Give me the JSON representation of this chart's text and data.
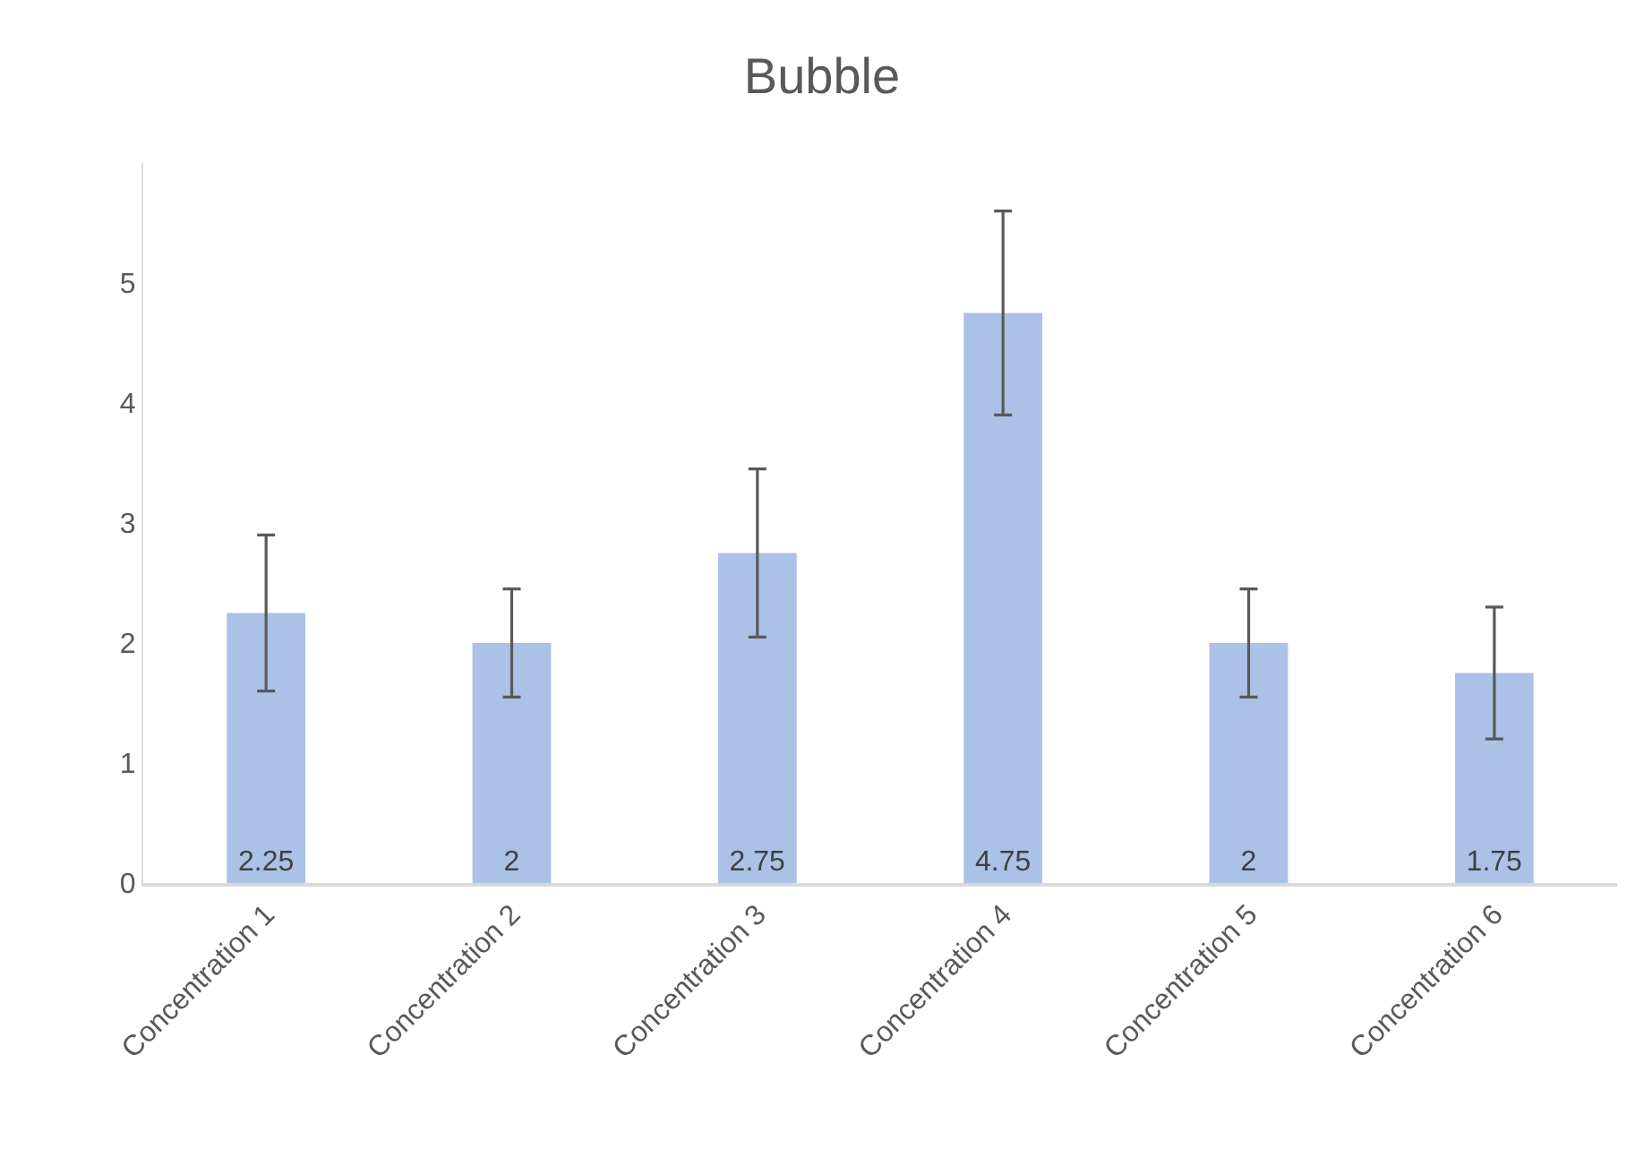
{
  "chart_data": {
    "type": "bar",
    "title": "Bubble",
    "categories": [
      "Concentration 1",
      "Concentration 2",
      "Concentration 3",
      "Concentration 4",
      "Concentration 5",
      "Concentration 6"
    ],
    "values": [
      2.25,
      2,
      2.75,
      4.75,
      2,
      1.75
    ],
    "errors": [
      [
        1.6,
        2.9
      ],
      [
        1.55,
        2.45
      ],
      [
        2.05,
        3.45
      ],
      [
        3.9,
        5.6
      ],
      [
        1.55,
        2.45
      ],
      [
        1.2,
        2.3
      ]
    ],
    "color": "#abc1e6",
    "ylim": [
      0,
      6
    ],
    "yticks": [
      0,
      1,
      2,
      3,
      4,
      5
    ],
    "data_labels": true,
    "grid": false,
    "legend": false
  }
}
